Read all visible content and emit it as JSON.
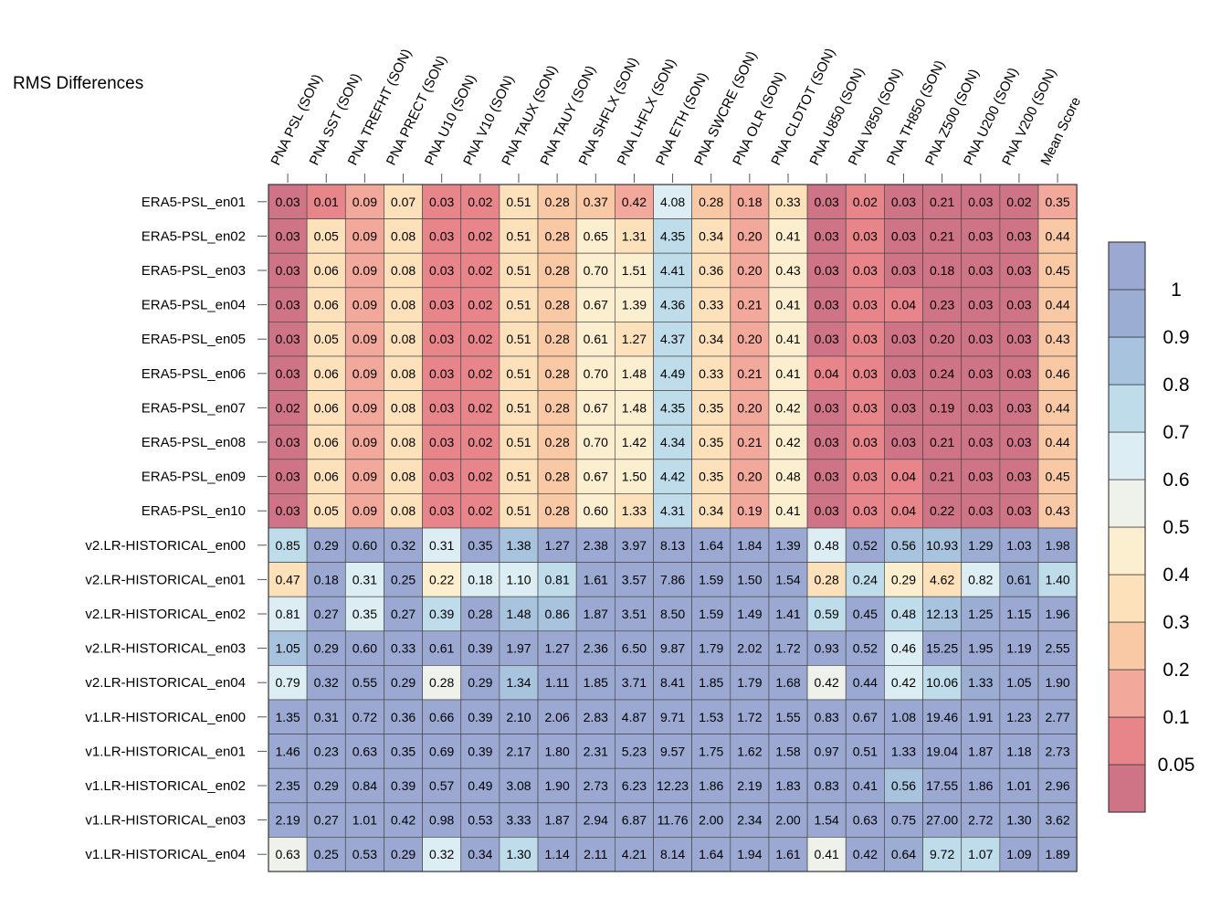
{
  "title": "RMS Differences",
  "chart_data": {
    "type": "heatmap",
    "title": "RMS Differences",
    "columns": [
      "PNA PSL (SON)",
      "PNA SST (SON)",
      "PNA TREFHT (SON)",
      "PNA PRECT (SON)",
      "PNA U10 (SON)",
      "PNA V10 (SON)",
      "PNA TAUX (SON)",
      "PNA TAUY (SON)",
      "PNA SHFLX (SON)",
      "PNA LHFLX (SON)",
      "PNA ETH (SON)",
      "PNA SWCRE (SON)",
      "PNA OLR (SON)",
      "PNA CLDTOT (SON)",
      "PNA U850 (SON)",
      "PNA V850 (SON)",
      "PNA TH850 (SON)",
      "PNA Z500 (SON)",
      "PNA U200 (SON)",
      "PNA V200 (SON)",
      "Mean Score"
    ],
    "rows": [
      "ERA5-PSL_en01",
      "ERA5-PSL_en02",
      "ERA5-PSL_en03",
      "ERA5-PSL_en04",
      "ERA5-PSL_en05",
      "ERA5-PSL_en06",
      "ERA5-PSL_en07",
      "ERA5-PSL_en08",
      "ERA5-PSL_en09",
      "ERA5-PSL_en10",
      "v2.LR-HISTORICAL_en00",
      "v2.LR-HISTORICAL_en01",
      "v2.LR-HISTORICAL_en02",
      "v2.LR-HISTORICAL_en03",
      "v2.LR-HISTORICAL_en04",
      "v1.LR-HISTORICAL_en00",
      "v1.LR-HISTORICAL_en01",
      "v1.LR-HISTORICAL_en02",
      "v1.LR-HISTORICAL_en03",
      "v1.LR-HISTORICAL_en04"
    ],
    "values": [
      [
        "0.03",
        "0.01",
        "0.09",
        "0.07",
        "0.03",
        "0.02",
        "0.51",
        "0.28",
        "0.37",
        "0.42",
        "4.08",
        "0.28",
        "0.18",
        "0.33",
        "0.03",
        "0.02",
        "0.03",
        "0.21",
        "0.03",
        "0.02",
        "0.35"
      ],
      [
        "0.03",
        "0.05",
        "0.09",
        "0.08",
        "0.03",
        "0.02",
        "0.51",
        "0.28",
        "0.65",
        "1.31",
        "4.35",
        "0.34",
        "0.20",
        "0.41",
        "0.03",
        "0.03",
        "0.03",
        "0.21",
        "0.03",
        "0.03",
        "0.44"
      ],
      [
        "0.03",
        "0.06",
        "0.09",
        "0.08",
        "0.03",
        "0.02",
        "0.51",
        "0.28",
        "0.70",
        "1.51",
        "4.41",
        "0.36",
        "0.20",
        "0.43",
        "0.03",
        "0.03",
        "0.03",
        "0.18",
        "0.03",
        "0.03",
        "0.45"
      ],
      [
        "0.03",
        "0.06",
        "0.09",
        "0.08",
        "0.03",
        "0.02",
        "0.51",
        "0.28",
        "0.67",
        "1.39",
        "4.36",
        "0.33",
        "0.21",
        "0.41",
        "0.03",
        "0.03",
        "0.04",
        "0.23",
        "0.03",
        "0.03",
        "0.44"
      ],
      [
        "0.03",
        "0.05",
        "0.09",
        "0.08",
        "0.03",
        "0.02",
        "0.51",
        "0.28",
        "0.61",
        "1.27",
        "4.37",
        "0.34",
        "0.20",
        "0.41",
        "0.03",
        "0.03",
        "0.03",
        "0.20",
        "0.03",
        "0.03",
        "0.43"
      ],
      [
        "0.03",
        "0.06",
        "0.09",
        "0.08",
        "0.03",
        "0.02",
        "0.51",
        "0.28",
        "0.70",
        "1.48",
        "4.49",
        "0.33",
        "0.21",
        "0.41",
        "0.04",
        "0.03",
        "0.03",
        "0.24",
        "0.03",
        "0.03",
        "0.46"
      ],
      [
        "0.02",
        "0.06",
        "0.09",
        "0.08",
        "0.03",
        "0.02",
        "0.51",
        "0.28",
        "0.67",
        "1.48",
        "4.35",
        "0.35",
        "0.20",
        "0.42",
        "0.03",
        "0.03",
        "0.03",
        "0.19",
        "0.03",
        "0.03",
        "0.44"
      ],
      [
        "0.03",
        "0.06",
        "0.09",
        "0.08",
        "0.03",
        "0.02",
        "0.51",
        "0.28",
        "0.70",
        "1.42",
        "4.34",
        "0.35",
        "0.21",
        "0.42",
        "0.03",
        "0.03",
        "0.03",
        "0.21",
        "0.03",
        "0.03",
        "0.44"
      ],
      [
        "0.03",
        "0.06",
        "0.09",
        "0.08",
        "0.03",
        "0.02",
        "0.51",
        "0.28",
        "0.67",
        "1.50",
        "4.42",
        "0.35",
        "0.20",
        "0.48",
        "0.03",
        "0.03",
        "0.04",
        "0.21",
        "0.03",
        "0.03",
        "0.45"
      ],
      [
        "0.03",
        "0.05",
        "0.09",
        "0.08",
        "0.03",
        "0.02",
        "0.51",
        "0.28",
        "0.60",
        "1.33",
        "4.31",
        "0.34",
        "0.19",
        "0.41",
        "0.03",
        "0.03",
        "0.04",
        "0.22",
        "0.03",
        "0.03",
        "0.43"
      ],
      [
        "0.85",
        "0.29",
        "0.60",
        "0.32",
        "0.31",
        "0.35",
        "1.38",
        "1.27",
        "2.38",
        "3.97",
        "8.13",
        "1.64",
        "1.84",
        "1.39",
        "0.48",
        "0.52",
        "0.56",
        "10.93",
        "1.29",
        "1.03",
        "1.98"
      ],
      [
        "0.47",
        "0.18",
        "0.31",
        "0.25",
        "0.22",
        "0.18",
        "1.10",
        "0.81",
        "1.61",
        "3.57",
        "7.86",
        "1.59",
        "1.50",
        "1.54",
        "0.28",
        "0.24",
        "0.29",
        "4.62",
        "0.82",
        "0.61",
        "1.40"
      ],
      [
        "0.81",
        "0.27",
        "0.35",
        "0.27",
        "0.39",
        "0.28",
        "1.48",
        "0.86",
        "1.87",
        "3.51",
        "8.50",
        "1.59",
        "1.49",
        "1.41",
        "0.59",
        "0.45",
        "0.48",
        "12.13",
        "1.25",
        "1.15",
        "1.96"
      ],
      [
        "1.05",
        "0.29",
        "0.60",
        "0.33",
        "0.61",
        "0.39",
        "1.97",
        "1.27",
        "2.36",
        "6.50",
        "9.87",
        "1.79",
        "2.02",
        "1.72",
        "0.93",
        "0.52",
        "0.46",
        "15.25",
        "1.95",
        "1.19",
        "2.55"
      ],
      [
        "0.79",
        "0.32",
        "0.55",
        "0.29",
        "0.28",
        "0.29",
        "1.34",
        "1.11",
        "1.85",
        "3.71",
        "8.41",
        "1.85",
        "1.79",
        "1.68",
        "0.42",
        "0.44",
        "0.42",
        "10.06",
        "1.33",
        "1.05",
        "1.90"
      ],
      [
        "1.35",
        "0.31",
        "0.72",
        "0.36",
        "0.66",
        "0.39",
        "2.10",
        "2.06",
        "2.83",
        "4.87",
        "9.71",
        "1.53",
        "1.72",
        "1.55",
        "0.83",
        "0.67",
        "1.08",
        "19.46",
        "1.91",
        "1.23",
        "2.77"
      ],
      [
        "1.46",
        "0.23",
        "0.63",
        "0.35",
        "0.69",
        "0.39",
        "2.17",
        "1.80",
        "2.31",
        "5.23",
        "9.57",
        "1.75",
        "1.62",
        "1.58",
        "0.97",
        "0.51",
        "1.33",
        "19.04",
        "1.87",
        "1.18",
        "2.73"
      ],
      [
        "2.35",
        "0.29",
        "0.84",
        "0.39",
        "0.57",
        "0.49",
        "3.08",
        "1.90",
        "2.73",
        "6.23",
        "12.23",
        "1.86",
        "2.19",
        "1.83",
        "0.83",
        "0.41",
        "0.56",
        "17.55",
        "1.86",
        "1.01",
        "2.96"
      ],
      [
        "2.19",
        "0.27",
        "1.01",
        "0.42",
        "0.98",
        "0.53",
        "3.33",
        "1.87",
        "2.94",
        "6.87",
        "11.76",
        "2.00",
        "2.34",
        "2.00",
        "1.54",
        "0.63",
        "0.75",
        "27.00",
        "2.72",
        "1.30",
        "3.62"
      ],
      [
        "0.63",
        "0.25",
        "0.53",
        "0.29",
        "0.32",
        "0.34",
        "1.30",
        "1.14",
        "2.11",
        "4.21",
        "8.14",
        "1.64",
        "1.94",
        "1.61",
        "0.41",
        "0.42",
        "0.64",
        "9.72",
        "1.07",
        "1.09",
        "1.89"
      ]
    ],
    "colorbar": {
      "labels": [
        "1",
        "0.9",
        "0.8",
        "0.7",
        "0.6",
        "0.5",
        "0.4",
        "0.3",
        "0.2",
        "0.1",
        "0.05"
      ],
      "thresholds": [
        0.05,
        0.1,
        0.2,
        0.3,
        0.4,
        0.5,
        0.6,
        0.7,
        0.8,
        0.9,
        1
      ],
      "colors_bottom_to_top": [
        "#cf7386",
        "#e7858b",
        "#f2a89a",
        "#f9c9a6",
        "#fde1bb",
        "#fbefcf",
        "#eff2ea",
        "#dcedf3",
        "#bfdcea",
        "#a8c3dd",
        "#9cadd4",
        "#9ba9d2"
      ]
    },
    "palette": {
      "bins": [
        "<0.05",
        "0.05-0.1",
        "0.1-0.2",
        "0.2-0.3",
        "0.3-0.4",
        "0.4-0.5",
        "0.5-0.6",
        "0.6-0.7",
        "0.7-0.8",
        "0.8-0.9",
        "0.9-1",
        ">1"
      ],
      "colors": [
        "#cf7386",
        "#e7858b",
        "#f2a89a",
        "#f9c9a6",
        "#fde1bb",
        "#fbefcf",
        "#eff2ea",
        "#dcedf3",
        "#bfdcea",
        "#a8c3dd",
        "#9cadd4",
        "#9ba9d2"
      ]
    },
    "mapping": "each column normalised; color reflects relative score"
  }
}
